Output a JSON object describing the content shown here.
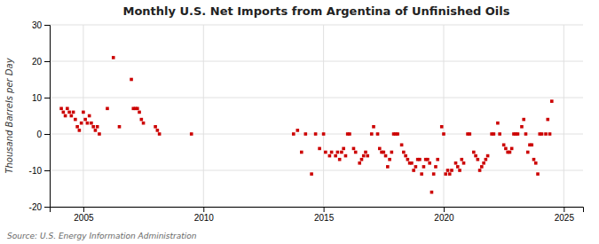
{
  "chart_data": {
    "type": "scatter",
    "title": "Monthly U.S. Net Imports from Argentina of Unfinished Oils",
    "ylabel": "Thousand Barrels per Day",
    "annotations": [
      "Source: U.S. Energy Information Administration"
    ],
    "color": "#cc0000",
    "marker": "square",
    "grid": true,
    "xlim": [
      2003.6,
      2025.8
    ],
    "xticks": [
      2005,
      2010,
      2015,
      2020,
      2025
    ],
    "ylim": [
      -20,
      30
    ],
    "yticks": [
      -20,
      -10,
      0,
      10,
      20,
      30
    ],
    "x": [
      2004.083,
      2004.167,
      2004.25,
      2004.333,
      2004.417,
      2004.5,
      2004.583,
      2004.667,
      2004.75,
      2004.833,
      2004.917,
      2005.0,
      2005.083,
      2005.167,
      2005.25,
      2005.333,
      2005.417,
      2005.5,
      2005.583,
      2005.667,
      2006.0,
      2006.25,
      2006.5,
      2007.0,
      2007.083,
      2007.167,
      2007.25,
      2007.333,
      2007.417,
      2007.5,
      2008.0,
      2008.083,
      2008.167,
      2009.5,
      2013.75,
      2013.917,
      2014.083,
      2014.25,
      2014.5,
      2014.667,
      2014.833,
      2015.0,
      2015.083,
      2015.25,
      2015.333,
      2015.5,
      2015.583,
      2015.667,
      2015.75,
      2015.833,
      2015.917,
      2016.0,
      2016.083,
      2016.25,
      2016.333,
      2016.5,
      2016.583,
      2016.667,
      2016.75,
      2016.833,
      2017.0,
      2017.083,
      2017.25,
      2017.333,
      2017.417,
      2017.5,
      2017.583,
      2017.667,
      2017.75,
      2017.833,
      2017.917,
      2018.0,
      2018.083,
      2018.25,
      2018.333,
      2018.417,
      2018.5,
      2018.583,
      2018.667,
      2018.75,
      2018.833,
      2018.917,
      2019.0,
      2019.083,
      2019.167,
      2019.25,
      2019.333,
      2019.417,
      2019.5,
      2019.583,
      2019.667,
      2019.75,
      2019.917,
      2020.0,
      2020.083,
      2020.167,
      2020.25,
      2020.333,
      2020.5,
      2020.583,
      2020.667,
      2020.75,
      2020.833,
      2021.0,
      2021.083,
      2021.25,
      2021.333,
      2021.417,
      2021.5,
      2021.583,
      2021.667,
      2021.75,
      2021.833,
      2022.0,
      2022.083,
      2022.25,
      2022.333,
      2022.5,
      2022.583,
      2022.667,
      2022.75,
      2022.833,
      2022.917,
      2023.0,
      2023.083,
      2023.25,
      2023.333,
      2023.417,
      2023.5,
      2023.583,
      2023.667,
      2023.75,
      2023.833,
      2023.917,
      2024.0,
      2024.083,
      2024.25,
      2024.333,
      2024.417,
      2024.5
    ],
    "values": [
      7,
      6,
      5,
      7,
      6,
      5,
      6,
      4,
      2,
      1,
      3,
      6,
      4,
      3,
      5,
      3,
      2,
      1,
      2,
      0,
      7,
      21,
      2,
      15,
      7,
      7,
      7,
      6,
      4,
      3,
      2,
      1,
      0,
      0,
      0,
      1,
      -5,
      0,
      -11,
      0,
      -4,
      0,
      -5,
      -6,
      -5,
      -6,
      -5,
      -7,
      -5,
      -4,
      -6,
      0,
      0,
      -4,
      -5,
      -8,
      -7,
      -6,
      -5,
      -6,
      0,
      2,
      0,
      -4,
      -5,
      -5,
      -6,
      -9,
      -7,
      -5,
      0,
      0,
      0,
      -3,
      -5,
      -6,
      -7,
      -8,
      -8,
      -10,
      -9,
      -7,
      -7,
      -11,
      -9,
      -7,
      -7,
      -8,
      -16,
      -11,
      -9,
      -7,
      2,
      0,
      -11,
      -10,
      -11,
      -10,
      -8,
      -9,
      -10,
      -7,
      -8,
      0,
      0,
      -5,
      -6,
      -7,
      -10,
      -9,
      -8,
      -7,
      -6,
      0,
      0,
      3,
      0,
      -3,
      -4,
      -5,
      -5,
      -4,
      0,
      0,
      0,
      2,
      4,
      0,
      -5,
      -3,
      -3,
      -7,
      -8,
      -11,
      0,
      0,
      0,
      4,
      0,
      9
    ]
  }
}
